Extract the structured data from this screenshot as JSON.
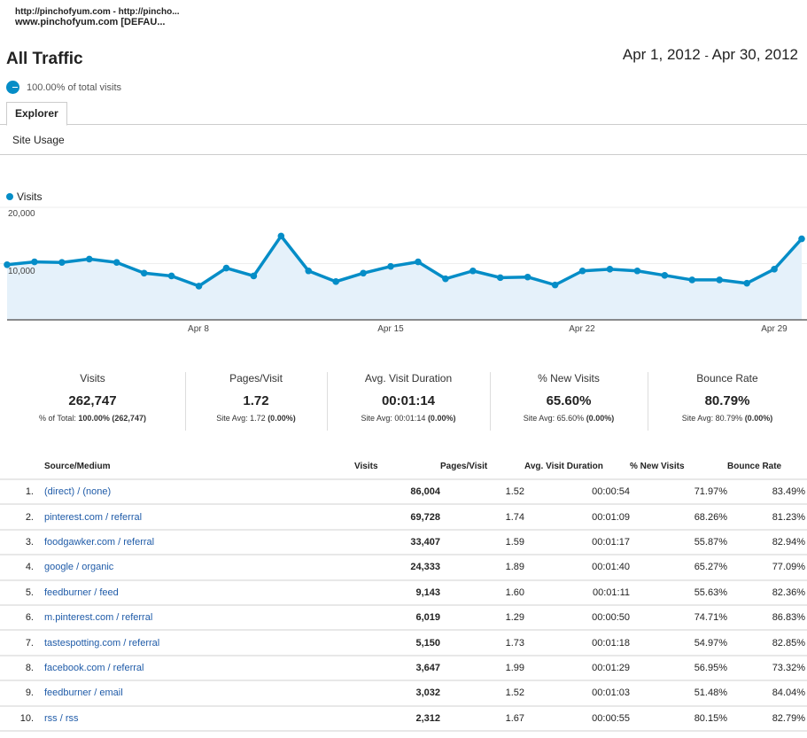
{
  "property": {
    "line1": "http://pinchofyum.com - http://pincho...",
    "line2": "www.pinchofyum.com [DEFAU..."
  },
  "header": {
    "title": "All Traffic",
    "date_start": "Apr 1, 2012",
    "date_sep": "-",
    "date_end": "Apr 30, 2012",
    "segment": "100.00% of total visits"
  },
  "tabs": {
    "explorer": "Explorer",
    "site_usage": "Site Usage"
  },
  "colors": {
    "accent": "#058dc7",
    "fill": "#e5f1fa",
    "link": "#1f5ba8"
  },
  "chart_data": {
    "type": "area",
    "series": [
      {
        "name": "Visits",
        "values": [
          9800,
          10300,
          10200,
          10800,
          10200,
          8300,
          7800,
          6000,
          9200,
          7800,
          14900,
          8700,
          6800,
          8300,
          9500,
          10300,
          7300,
          8700,
          7500,
          7600,
          6200,
          8700,
          9000,
          8700,
          7900,
          7100,
          7100,
          6500,
          9000,
          14400
        ]
      }
    ],
    "x": [
      "Apr 1",
      "Apr 2",
      "Apr 3",
      "Apr 4",
      "Apr 5",
      "Apr 6",
      "Apr 7",
      "Apr 8",
      "Apr 9",
      "Apr 10",
      "Apr 11",
      "Apr 12",
      "Apr 13",
      "Apr 14",
      "Apr 15",
      "Apr 16",
      "Apr 17",
      "Apr 18",
      "Apr 19",
      "Apr 20",
      "Apr 21",
      "Apr 22",
      "Apr 23",
      "Apr 24",
      "Apr 25",
      "Apr 26",
      "Apr 27",
      "Apr 28",
      "Apr 29",
      "Apr 30"
    ],
    "yticks": [
      "10,000",
      "20,000"
    ],
    "xticks": [
      "Apr 8",
      "Apr 15",
      "Apr 22",
      "Apr 29"
    ],
    "ylim": [
      0,
      20000
    ],
    "grid": true,
    "legend": "top-left"
  },
  "summary": [
    {
      "label": "Visits",
      "value": "262,747",
      "sub_pre": "% of Total: ",
      "sub_bold": "100.00% (262,747)"
    },
    {
      "label": "Pages/Visit",
      "value": "1.72",
      "sub_pre": "Site Avg: 1.72 ",
      "sub_bold": "(0.00%)"
    },
    {
      "label": "Avg. Visit Duration",
      "value": "00:01:14",
      "sub_pre": "Site Avg: 00:01:14 ",
      "sub_bold": "(0.00%)"
    },
    {
      "label": "% New Visits",
      "value": "65.60%",
      "sub_pre": "Site Avg: 65.60% ",
      "sub_bold": "(0.00%)"
    },
    {
      "label": "Bounce Rate",
      "value": "80.79%",
      "sub_pre": "Site Avg: 80.79% ",
      "sub_bold": "(0.00%)"
    }
  ],
  "table": {
    "headers": [
      "Source/Medium",
      "Visits",
      "Pages/Visit",
      "Avg. Visit Duration",
      "% New Visits",
      "Bounce Rate"
    ],
    "rows": [
      [
        "1.",
        "(direct) / (none)",
        "86,004",
        "1.52",
        "00:00:54",
        "71.97%",
        "83.49%"
      ],
      [
        "2.",
        "pinterest.com / referral",
        "69,728",
        "1.74",
        "00:01:09",
        "68.26%",
        "81.23%"
      ],
      [
        "3.",
        "foodgawker.com / referral",
        "33,407",
        "1.59",
        "00:01:17",
        "55.87%",
        "82.94%"
      ],
      [
        "4.",
        "google / organic",
        "24,333",
        "1.89",
        "00:01:40",
        "65.27%",
        "77.09%"
      ],
      [
        "5.",
        "feedburner / feed",
        "9,143",
        "1.60",
        "00:01:11",
        "55.63%",
        "82.36%"
      ],
      [
        "6.",
        "m.pinterest.com / referral",
        "6,019",
        "1.29",
        "00:00:50",
        "74.71%",
        "86.83%"
      ],
      [
        "7.",
        "tastespotting.com / referral",
        "5,150",
        "1.73",
        "00:01:18",
        "54.97%",
        "82.85%"
      ],
      [
        "8.",
        "facebook.com / referral",
        "3,647",
        "1.99",
        "00:01:29",
        "56.95%",
        "73.32%"
      ],
      [
        "9.",
        "feedburner / email",
        "3,032",
        "1.52",
        "00:01:03",
        "51.48%",
        "84.04%"
      ],
      [
        "10.",
        "rss / rss",
        "2,312",
        "1.67",
        "00:00:55",
        "80.15%",
        "82.79%"
      ]
    ]
  }
}
